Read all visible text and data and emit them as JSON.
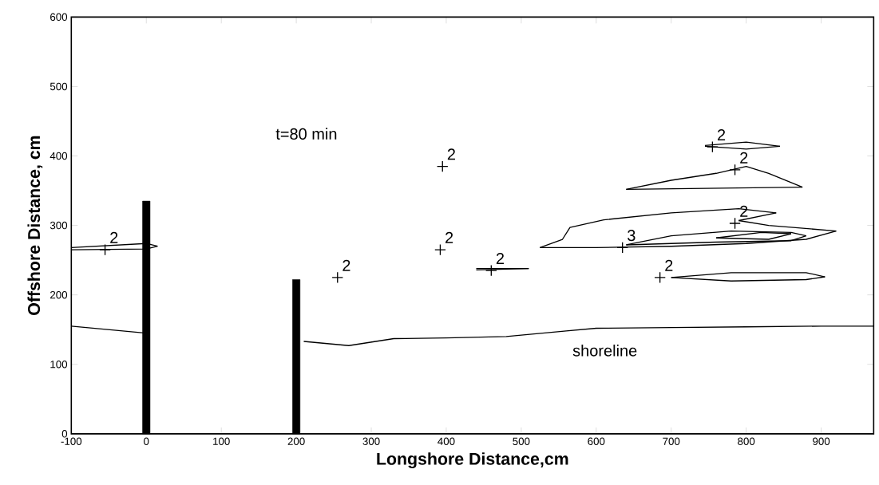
{
  "chart_data": {
    "type": "line",
    "xlabel": "Longshore Distance,cm",
    "ylabel": "Offshore Distance, cm",
    "xlim": [
      -100,
      970
    ],
    "ylim": [
      0,
      600
    ],
    "xticks": [
      -100,
      0,
      100,
      200,
      300,
      400,
      500,
      600,
      700,
      800,
      900
    ],
    "yticks": [
      0,
      100,
      200,
      300,
      400,
      500,
      600
    ],
    "annotations": [
      "t=80 min",
      "shoreline",
      {
        "text": "2",
        "x": -55,
        "y": 265
      },
      {
        "text": "2",
        "x": 255,
        "y": 225
      },
      {
        "text": "2",
        "x": 395,
        "y": 385
      },
      {
        "text": "2",
        "x": 392,
        "y": 265
      },
      {
        "text": "2",
        "x": 460,
        "y": 235
      },
      {
        "text": "2",
        "x": 755,
        "y": 413
      },
      {
        "text": "2",
        "x": 785,
        "y": 380
      },
      {
        "text": "2",
        "x": 785,
        "y": 303
      },
      {
        "text": "3",
        "x": 635,
        "y": 268
      },
      {
        "text": "2",
        "x": 685,
        "y": 225
      }
    ],
    "series": [
      {
        "type": "bar",
        "color": "#000000",
        "x": [
          0,
          200
        ],
        "values": [
          335,
          222
        ]
      },
      {
        "color": "#000000",
        "marker": "none",
        "x": [
          -100,
          0,
          100,
          210,
          270,
          330,
          400,
          480,
          560,
          600,
          700,
          800,
          900,
          970
        ],
        "values": [
          155,
          145,
          null,
          133,
          127,
          137,
          138,
          140,
          148,
          152,
          153,
          154,
          155,
          155
        ]
      },
      {
        "type": "line",
        "color": "#000000",
        "marker": "none",
        "x": [
          -100,
          0,
          15
        ],
        "values": [
          268,
          274,
          270
        ]
      },
      {
        "type": "line",
        "color": "#000000",
        "marker": "none",
        "x": [
          -100,
          0,
          15
        ],
        "values": [
          265,
          266,
          270
        ]
      },
      {
        "type": "line",
        "color": "#000000",
        "marker": "none",
        "x": [
          440,
          510
        ],
        "values": [
          238,
          238
        ]
      },
      {
        "type": "line",
        "color": "#000000",
        "marker": "none",
        "x": [
          440,
          510
        ],
        "values": [
          236,
          238
        ]
      },
      {
        "type": "line",
        "color": "#000000",
        "marker": "none",
        "x": [
          745,
          800,
          845
        ],
        "values": [
          415,
          420,
          414
        ]
      },
      {
        "type": "line",
        "color": "#000000",
        "marker": "none",
        "x": [
          745,
          800,
          845
        ],
        "values": [
          414,
          410,
          414
        ]
      },
      {
        "type": "line",
        "color": "#000000",
        "marker": "none",
        "x": [
          640,
          700,
          760,
          800,
          830,
          875
        ],
        "values": [
          352,
          365,
          375,
          385,
          375,
          355
        ]
      },
      {
        "type": "line",
        "color": "#000000",
        "marker": "none",
        "x": [
          640,
          875
        ],
        "values": [
          352,
          355
        ]
      },
      {
        "type": "line",
        "color": "#000000",
        "marker": "none",
        "x": [
          525,
          555,
          565,
          610,
          700,
          790,
          840
        ],
        "values": [
          268,
          280,
          297,
          308,
          318,
          324,
          318
        ]
      },
      {
        "type": "line",
        "color": "#000000",
        "marker": "none",
        "x": [
          790,
          840
        ],
        "values": [
          307,
          318
        ]
      },
      {
        "type": "line",
        "color": "#000000",
        "marker": "none",
        "x": [
          790,
          830,
          920
        ],
        "values": [
          307,
          300,
          292
        ]
      },
      {
        "type": "line",
        "color": "#000000",
        "marker": "none",
        "x": [
          525,
          600,
          700,
          800,
          880,
          920
        ],
        "values": [
          268,
          268,
          270,
          274,
          280,
          292
        ]
      },
      {
        "type": "line",
        "color": "#000000",
        "marker": "none",
        "x": [
          640,
          700,
          780,
          860,
          880
        ],
        "values": [
          272,
          285,
          292,
          290,
          285
        ]
      },
      {
        "type": "line",
        "color": "#000000",
        "marker": "none",
        "x": [
          640,
          760,
          860,
          880
        ],
        "values": [
          272,
          276,
          278,
          285
        ]
      },
      {
        "type": "line",
        "color": "#000000",
        "marker": "none",
        "x": [
          760,
          820,
          860
        ],
        "values": [
          282,
          290,
          288
        ]
      },
      {
        "type": "line",
        "color": "#000000",
        "marker": "none",
        "x": [
          760,
          830,
          860
        ],
        "values": [
          282,
          280,
          288
        ]
      },
      {
        "type": "line",
        "color": "#000000",
        "marker": "none",
        "x": [
          700,
          780,
          880,
          905
        ],
        "values": [
          225,
          232,
          232,
          226
        ]
      },
      {
        "type": "line",
        "color": "#000000",
        "marker": "none",
        "x": [
          700,
          780,
          880,
          905
        ],
        "values": [
          225,
          220,
          222,
          226
        ]
      },
      {
        "type": "scatter",
        "color": "#000000",
        "marker": "cross",
        "x": [
          -55,
          255,
          395,
          392,
          460,
          755,
          785,
          785,
          635,
          685
        ],
        "values": [
          265,
          225,
          385,
          265,
          235,
          413,
          380,
          303,
          268,
          225
        ]
      }
    ]
  }
}
